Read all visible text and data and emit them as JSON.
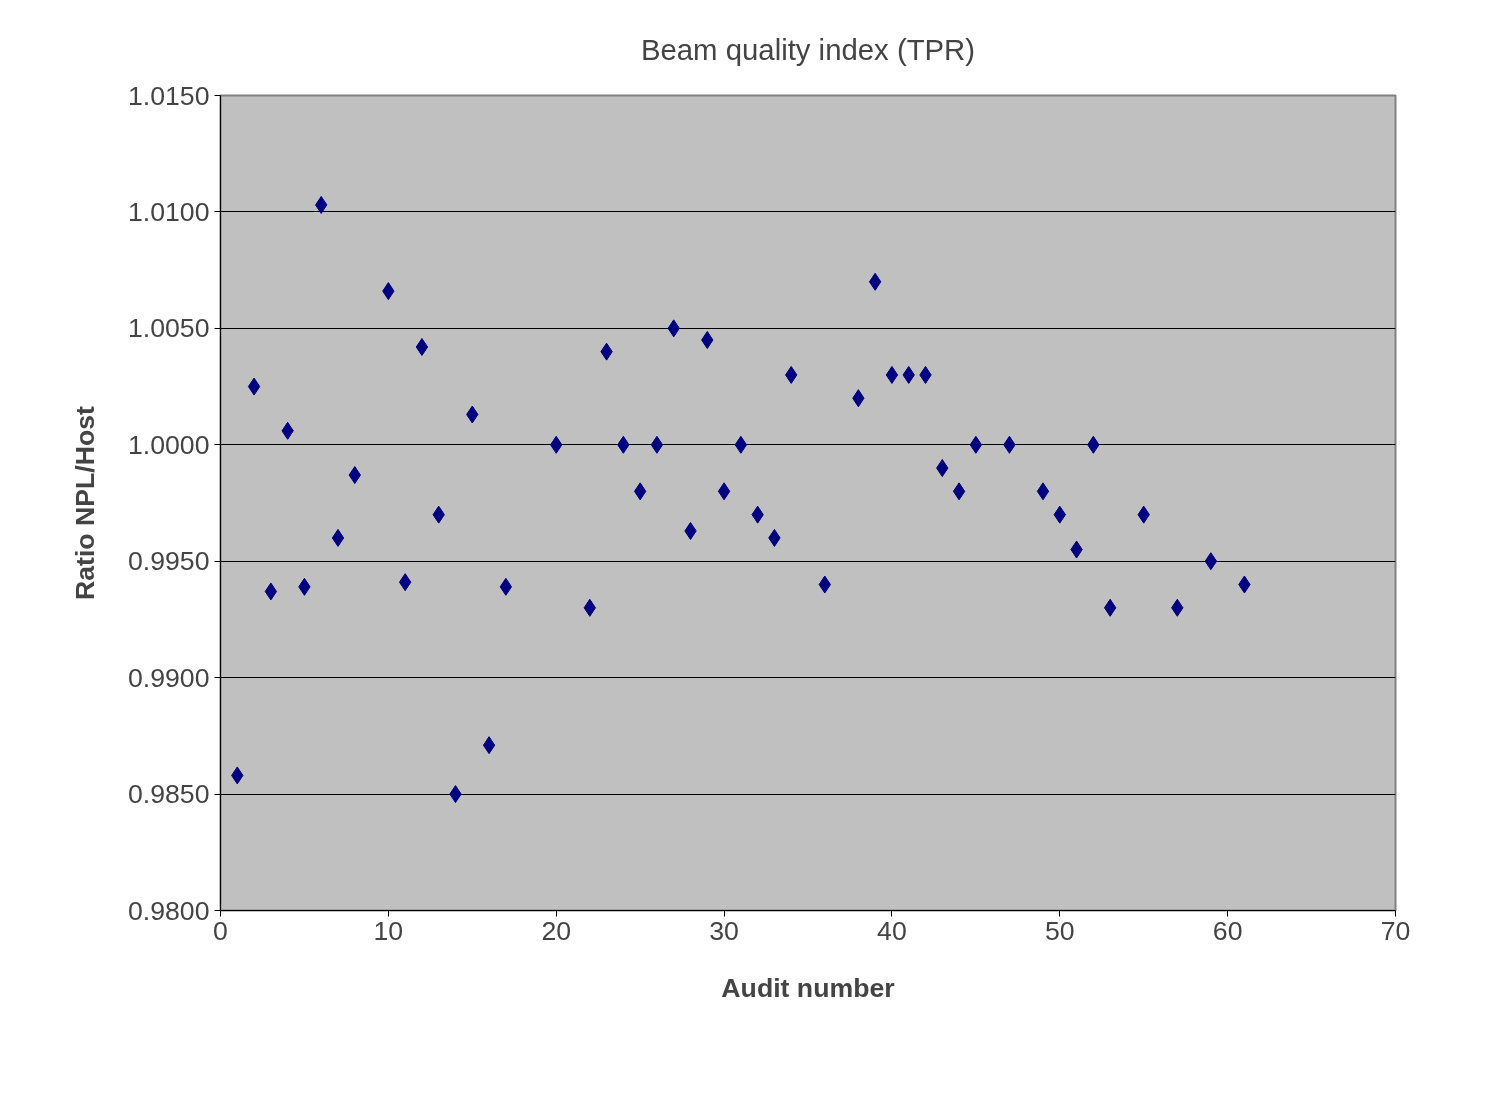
{
  "chart_data": {
    "type": "scatter",
    "title": "Beam quality index (TPR)",
    "xlabel": "Audit number",
    "ylabel": "Ratio NPL/Host",
    "x": [
      1,
      2,
      3,
      4,
      5,
      6,
      7,
      8,
      10,
      11,
      12,
      13,
      14,
      15,
      16,
      17,
      20,
      22,
      23,
      24,
      25,
      26,
      27,
      28,
      29,
      30,
      31,
      32,
      33,
      34,
      36,
      38,
      39,
      40,
      41,
      42,
      43,
      44,
      45,
      47,
      49,
      50,
      51,
      52,
      53,
      55,
      57,
      59,
      61
    ],
    "series": [
      {
        "color": "#000080",
        "values": [
          0.9858,
          1.0025,
          0.9937,
          1.0006,
          0.9939,
          1.0103,
          0.996,
          0.9987,
          1.0066,
          0.9941,
          1.0042,
          0.997,
          0.985,
          1.0013,
          0.9871,
          0.9939,
          1.0,
          0.993,
          1.004,
          1.0,
          0.998,
          1.0,
          1.005,
          0.9963,
          1.0045,
          0.998,
          1.0,
          0.997,
          0.996,
          1.003,
          0.994,
          1.002,
          1.007,
          1.003,
          1.003,
          1.003,
          0.999,
          0.998,
          1.0,
          1.0,
          0.998,
          0.997,
          0.9955,
          1.0,
          0.993,
          0.997,
          0.993,
          0.995,
          0.994
        ]
      }
    ],
    "xlim": [
      0,
      70
    ],
    "xticks": [
      0,
      10,
      20,
      30,
      40,
      50,
      60,
      70
    ],
    "ylim": [
      0.98,
      1.015
    ],
    "yticks": [
      {
        "value": 0.98,
        "label": "0.9800"
      },
      {
        "value": 0.985,
        "label": "0.9850"
      },
      {
        "value": 0.99,
        "label": "0.9900"
      },
      {
        "value": 0.995,
        "label": "0.9950"
      },
      {
        "value": 1.0,
        "label": "1.0000"
      },
      {
        "value": 1.005,
        "label": "1.0050"
      },
      {
        "value": 1.01,
        "label": "1.0100"
      },
      {
        "value": 1.015,
        "label": "1.0150"
      }
    ],
    "grid": "y",
    "marker": "diamond"
  }
}
